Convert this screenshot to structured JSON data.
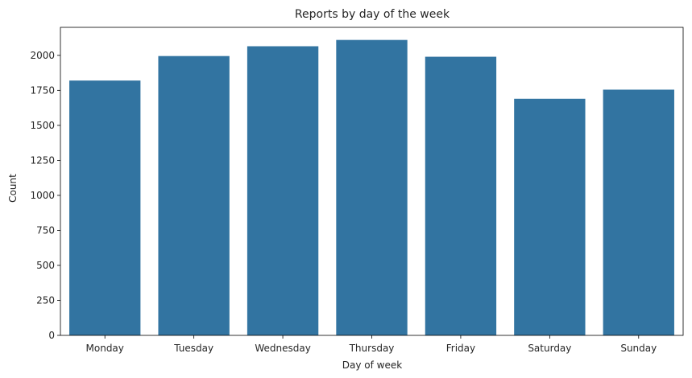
{
  "chart_data": {
    "type": "bar",
    "title": "Reports by day of the week",
    "xlabel": "Day of week",
    "ylabel": "Count",
    "categories": [
      "Monday",
      "Tuesday",
      "Wednesday",
      "Thursday",
      "Friday",
      "Saturday",
      "Sunday"
    ],
    "values": [
      1820,
      1995,
      2065,
      2110,
      1990,
      1690,
      1755
    ],
    "ylim": [
      0,
      2200
    ],
    "yticks": [
      0,
      250,
      500,
      750,
      1000,
      1250,
      1500,
      1750,
      2000
    ],
    "bar_color": "#3274a1",
    "grid": false,
    "legend": "none"
  }
}
